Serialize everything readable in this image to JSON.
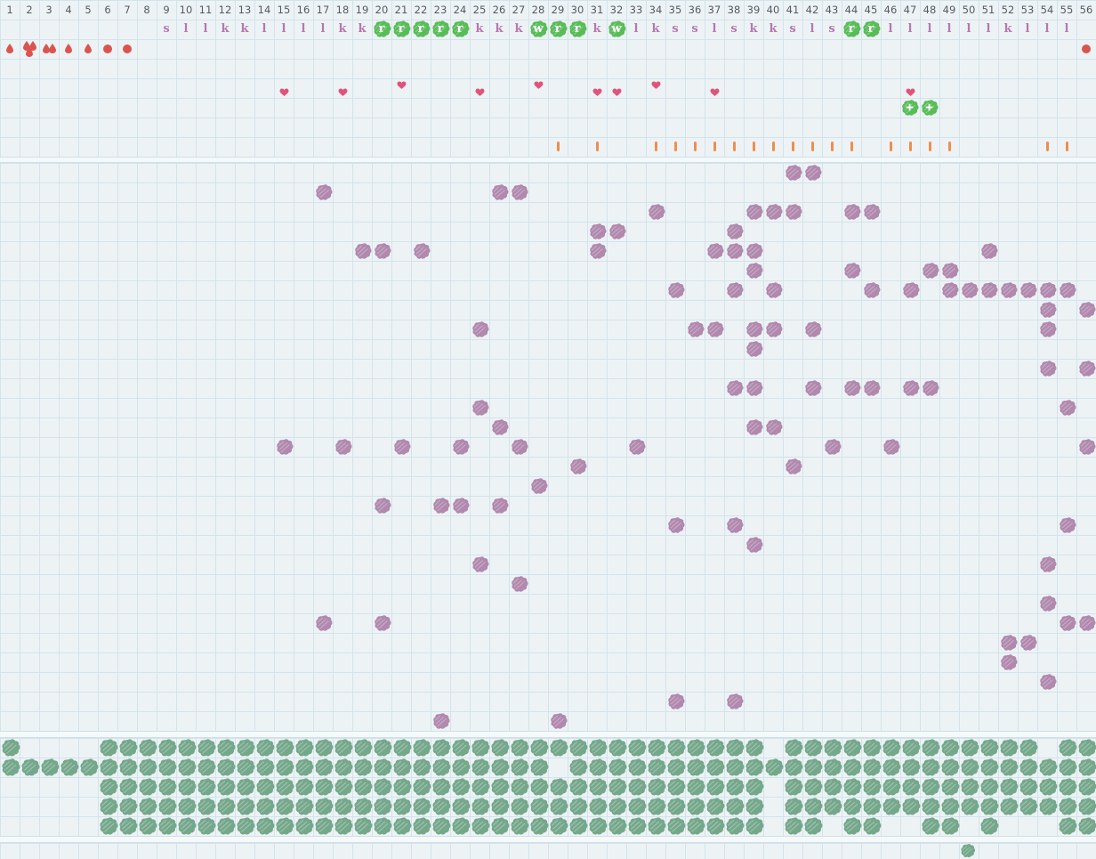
{
  "grid": {
    "columns": 56,
    "cell_size": 22,
    "field_rows": 29,
    "pasture_rows": 5
  },
  "colors": {
    "background": "#edf3f5",
    "grid_line": "#d3e3ec",
    "separator_bg": "#f5f9fa",
    "number_text": "#535c63",
    "letter_text": "#b678b0",
    "letter_highlight": "#58bd58",
    "letter_highlight_text": "#ffffff",
    "creature": "#b289ae",
    "pasture": "#75a88b",
    "droplet": "#da5450",
    "heart": "#e0547c",
    "tick": "#ee8e4e",
    "flower": "#58bd58"
  },
  "header": {
    "column_numbers": [
      1,
      2,
      3,
      4,
      5,
      6,
      7,
      8,
      9,
      10,
      11,
      12,
      13,
      14,
      15,
      16,
      17,
      18,
      19,
      20,
      21,
      22,
      23,
      24,
      25,
      26,
      27,
      28,
      29,
      30,
      31,
      32,
      33,
      34,
      35,
      36,
      37,
      38,
      39,
      40,
      41,
      42,
      43,
      44,
      45,
      46,
      47,
      48,
      49,
      50,
      51,
      52,
      53,
      54,
      55,
      56
    ],
    "letters": [
      {
        "col": 9,
        "ch": "s"
      },
      {
        "col": 10,
        "ch": "l"
      },
      {
        "col": 11,
        "ch": "l"
      },
      {
        "col": 12,
        "ch": "k"
      },
      {
        "col": 13,
        "ch": "k"
      },
      {
        "col": 14,
        "ch": "l"
      },
      {
        "col": 15,
        "ch": "l"
      },
      {
        "col": 16,
        "ch": "l"
      },
      {
        "col": 17,
        "ch": "l"
      },
      {
        "col": 18,
        "ch": "k"
      },
      {
        "col": 19,
        "ch": "k"
      },
      {
        "col": 20,
        "ch": "r",
        "hl": true
      },
      {
        "col": 21,
        "ch": "r",
        "hl": true
      },
      {
        "col": 22,
        "ch": "r",
        "hl": true
      },
      {
        "col": 23,
        "ch": "r",
        "hl": true
      },
      {
        "col": 24,
        "ch": "r",
        "hl": true
      },
      {
        "col": 25,
        "ch": "k"
      },
      {
        "col": 26,
        "ch": "k"
      },
      {
        "col": 27,
        "ch": "k"
      },
      {
        "col": 28,
        "ch": "w",
        "hl": true
      },
      {
        "col": 29,
        "ch": "r",
        "hl": true
      },
      {
        "col": 30,
        "ch": "r",
        "hl": true
      },
      {
        "col": 31,
        "ch": "k"
      },
      {
        "col": 32,
        "ch": "w",
        "hl": true
      },
      {
        "col": 33,
        "ch": "l"
      },
      {
        "col": 34,
        "ch": "k"
      },
      {
        "col": 35,
        "ch": "s"
      },
      {
        "col": 36,
        "ch": "s"
      },
      {
        "col": 37,
        "ch": "l"
      },
      {
        "col": 38,
        "ch": "s"
      },
      {
        "col": 39,
        "ch": "k"
      },
      {
        "col": 40,
        "ch": "k"
      },
      {
        "col": 41,
        "ch": "s"
      },
      {
        "col": 42,
        "ch": "l"
      },
      {
        "col": 43,
        "ch": "s"
      },
      {
        "col": 44,
        "ch": "r",
        "hl": true
      },
      {
        "col": 45,
        "ch": "r",
        "hl": true
      },
      {
        "col": 46,
        "ch": "l"
      },
      {
        "col": 47,
        "ch": "l"
      },
      {
        "col": 48,
        "ch": "l"
      },
      {
        "col": 49,
        "ch": "l"
      },
      {
        "col": 50,
        "ch": "l"
      },
      {
        "col": 51,
        "ch": "l"
      },
      {
        "col": 52,
        "ch": "k"
      },
      {
        "col": 53,
        "ch": "l"
      },
      {
        "col": 54,
        "ch": "l"
      },
      {
        "col": 55,
        "ch": "l"
      }
    ],
    "droplets": [
      {
        "col": 1,
        "type": "single-drop"
      },
      {
        "col": 2,
        "type": "triple-drop"
      },
      {
        "col": 3,
        "type": "double-drop"
      },
      {
        "col": 4,
        "type": "single-drop"
      },
      {
        "col": 5,
        "type": "single-drop"
      },
      {
        "col": 6,
        "type": "dot"
      },
      {
        "col": 7,
        "type": "dot"
      },
      {
        "col": 56,
        "type": "dot"
      }
    ],
    "hearts": [
      {
        "col": 15,
        "pos": "low"
      },
      {
        "col": 18,
        "pos": "low"
      },
      {
        "col": 21,
        "pos": "high"
      },
      {
        "col": 25,
        "pos": "low"
      },
      {
        "col": 28,
        "pos": "high"
      },
      {
        "col": 31,
        "pos": "low"
      },
      {
        "col": 32,
        "pos": "low"
      },
      {
        "col": 34,
        "pos": "high"
      },
      {
        "col": 37,
        "pos": "low"
      },
      {
        "col": 47,
        "pos": "low"
      }
    ],
    "flowers": [
      47,
      48
    ],
    "ticks": [
      29,
      31,
      34,
      35,
      36,
      37,
      38,
      39,
      40,
      41,
      42,
      43,
      44,
      46,
      47,
      48,
      49,
      54,
      55
    ]
  },
  "field": {
    "creatures": [
      {
        "row": 1,
        "cols": [
          41,
          42
        ]
      },
      {
        "row": 2,
        "cols": [
          17,
          26,
          27
        ]
      },
      {
        "row": 3,
        "cols": [
          34,
          39,
          40,
          41,
          44,
          45
        ]
      },
      {
        "row": 4,
        "cols": [
          31,
          32,
          38
        ]
      },
      {
        "row": 5,
        "cols": [
          19,
          20,
          22,
          31,
          37,
          38,
          39,
          51
        ]
      },
      {
        "row": 6,
        "cols": [
          39,
          44,
          48,
          49
        ]
      },
      {
        "row": 7,
        "cols": [
          35,
          38,
          40,
          45,
          47,
          49,
          50,
          51,
          52,
          53,
          54,
          55
        ]
      },
      {
        "row": 8,
        "cols": [
          54,
          56
        ]
      },
      {
        "row": 9,
        "cols": [
          25,
          36,
          37,
          39,
          40,
          42,
          54
        ]
      },
      {
        "row": 10,
        "cols": [
          39
        ]
      },
      {
        "row": 11,
        "cols": [
          54,
          56
        ]
      },
      {
        "row": 12,
        "cols": [
          38,
          39,
          42,
          44,
          45,
          47,
          48
        ]
      },
      {
        "row": 13,
        "cols": [
          25,
          55
        ]
      },
      {
        "row": 14,
        "cols": [
          26,
          39,
          40
        ]
      },
      {
        "row": 15,
        "cols": [
          15,
          18,
          21,
          24,
          27,
          33,
          43,
          46,
          56
        ]
      },
      {
        "row": 16,
        "cols": [
          30,
          41
        ]
      },
      {
        "row": 17,
        "cols": [
          28
        ]
      },
      {
        "row": 18,
        "cols": [
          20,
          23,
          24,
          26
        ]
      },
      {
        "row": 19,
        "cols": [
          35,
          38,
          55
        ]
      },
      {
        "row": 20,
        "cols": [
          39
        ]
      },
      {
        "row": 21,
        "cols": [
          25,
          54
        ]
      },
      {
        "row": 22,
        "cols": [
          27
        ]
      },
      {
        "row": 23,
        "cols": [
          54
        ]
      },
      {
        "row": 24,
        "cols": [
          17,
          20,
          55,
          56
        ]
      },
      {
        "row": 25,
        "cols": [
          52,
          53
        ]
      },
      {
        "row": 26,
        "cols": [
          52
        ]
      },
      {
        "row": 27,
        "cols": [
          54
        ]
      },
      {
        "row": 28,
        "cols": [
          35,
          38
        ]
      },
      {
        "row": 29,
        "cols": [
          23,
          29
        ]
      }
    ]
  },
  "pasture": {
    "rows": [
      {
        "runs": [
          [
            1,
            1
          ],
          [
            6,
            39
          ],
          [
            41,
            53
          ],
          [
            55,
            56
          ]
        ]
      },
      {
        "runs": [
          [
            1,
            28
          ],
          [
            30,
            56
          ]
        ]
      },
      {
        "runs": [
          [
            6,
            39
          ],
          [
            41,
            56
          ]
        ]
      },
      {
        "runs": [
          [
            6,
            39
          ],
          [
            41,
            56
          ]
        ]
      },
      {
        "runs": [
          [
            6,
            39
          ],
          [
            41,
            42
          ],
          [
            44,
            45
          ],
          [
            48,
            49
          ],
          [
            51,
            51
          ],
          [
            55,
            56
          ]
        ]
      }
    ]
  },
  "bottom_row": {
    "pasture_cols": [
      50
    ]
  }
}
